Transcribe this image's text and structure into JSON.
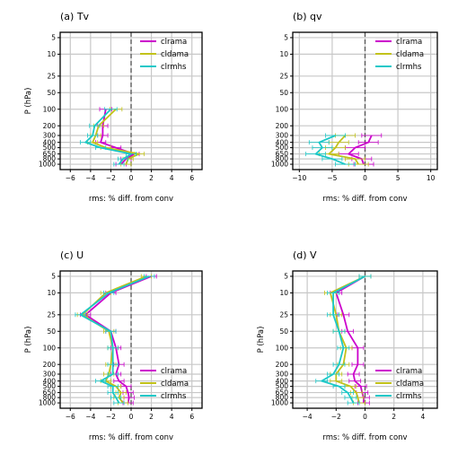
{
  "figure": {
    "pressure_levels": [
      1000,
      800,
      650,
      500,
      400,
      300,
      200,
      100,
      50,
      25,
      10,
      5
    ],
    "series_colors": {
      "clrama": "#cc00cc",
      "cldama": "#c2c21a",
      "clrmhs": "#1ac8c8"
    },
    "grid": true,
    "zero_line": "dashed"
  },
  "chart_data": [
    {
      "type": "line",
      "title": "(a) Tv",
      "xlabel": "rms: % diff. from conv",
      "ylabel": "P (hPa)",
      "xticks": [
        "−6",
        "−4",
        "−2",
        "0",
        "2",
        "4",
        "6"
      ],
      "xlim": [
        -7,
        7
      ],
      "yticks": [
        "5",
        "10",
        "25",
        "50",
        "100",
        "200",
        "300",
        "400",
        "500",
        "650",
        "800",
        "1000"
      ],
      "legend": "top-right",
      "series": [
        {
          "name": "clrama",
          "color": "#cc00cc",
          "pressure": [
            100,
            200,
            300,
            400,
            500,
            650,
            800,
            1000
          ],
          "values": [
            -2.5,
            -2.8,
            -2.8,
            -3.0,
            -1.5,
            0.3,
            -0.5,
            -1.0
          ],
          "err": [
            0.6,
            0.5,
            0.5,
            0.5,
            0.5,
            0.5,
            0.5,
            0.5
          ]
        },
        {
          "name": "cldama",
          "color": "#c2c21a",
          "pressure": [
            100,
            200,
            300,
            400,
            500,
            650,
            800,
            1000
          ],
          "values": [
            -1.5,
            -3.2,
            -3.5,
            -3.8,
            -2.5,
            0.8,
            -0.3,
            -0.5
          ],
          "err": [
            0.6,
            0.5,
            0.5,
            0.5,
            0.5,
            0.5,
            0.5,
            0.5
          ]
        },
        {
          "name": "clrmhs",
          "color": "#1ac8c8",
          "pressure": [
            100,
            200,
            300,
            400,
            500,
            650,
            800,
            1000
          ],
          "values": [
            -2.0,
            -3.6,
            -3.8,
            -4.5,
            -3.0,
            0.0,
            -0.8,
            -1.2
          ],
          "err": [
            0.6,
            0.5,
            0.5,
            0.5,
            0.5,
            0.5,
            0.5,
            0.5
          ]
        }
      ]
    },
    {
      "type": "line",
      "title": "(b) qv",
      "xlabel": "rms: % diff. from conv",
      "ylabel": "",
      "xticks": [
        "−10",
        "−5",
        "0",
        "5",
        "10"
      ],
      "xlim": [
        -11,
        11
      ],
      "yticks": [
        "5",
        "10",
        "25",
        "50",
        "100",
        "200",
        "300",
        "400",
        "500",
        "650",
        "800",
        "1000"
      ],
      "legend": "top-right",
      "series": [
        {
          "name": "clrama",
          "color": "#cc00cc",
          "pressure": [
            300,
            400,
            500,
            650,
            800,
            1000
          ],
          "values": [
            1.0,
            0.5,
            -1.5,
            -2.5,
            -0.5,
            -0.2
          ],
          "err": [
            1.5,
            1.5,
            1.5,
            1.5,
            1.5,
            1.5
          ]
        },
        {
          "name": "cldama",
          "color": "#c2c21a",
          "pressure": [
            300,
            400,
            500,
            650,
            800,
            1000
          ],
          "values": [
            -3.0,
            -4.0,
            -4.5,
            -5.5,
            -1.5,
            -1.0
          ],
          "err": [
            1.5,
            1.5,
            1.5,
            1.5,
            1.5,
            1.5
          ]
        },
        {
          "name": "clrmhs",
          "color": "#1ac8c8",
          "pressure": [
            300,
            400,
            500,
            650,
            800,
            1000
          ],
          "values": [
            -4.5,
            -7.0,
            -6.5,
            -7.5,
            -5.0,
            -3.0
          ],
          "err": [
            1.5,
            1.5,
            1.5,
            1.5,
            1.5,
            1.5
          ]
        }
      ]
    },
    {
      "type": "line",
      "title": "(c) U",
      "xlabel": "rms: % diff. from conv",
      "ylabel": "P (hPa)",
      "xticks": [
        "−6",
        "−4",
        "−2",
        "0",
        "2",
        "4",
        "6"
      ],
      "xlim": [
        -7,
        7
      ],
      "yticks": [
        "5",
        "10",
        "25",
        "50",
        "100",
        "200",
        "300",
        "400",
        "500",
        "650",
        "800",
        "1000"
      ],
      "legend": "bottom-right",
      "series": [
        {
          "name": "clrama",
          "color": "#cc00cc",
          "pressure": [
            5,
            10,
            25,
            50,
            100,
            200,
            300,
            400,
            500,
            650,
            800,
            1000
          ],
          "values": [
            2.0,
            -2.0,
            -4.5,
            -2.0,
            -1.5,
            -1.2,
            -1.5,
            -1.2,
            -0.5,
            -0.3,
            -0.2,
            -0.3
          ],
          "err": [
            0.5,
            0.5,
            0.5,
            0.5,
            0.5,
            0.5,
            0.5,
            0.5,
            0.5,
            0.5,
            0.5,
            0.5
          ]
        },
        {
          "name": "cldama",
          "color": "#c2c21a",
          "pressure": [
            5,
            10,
            25,
            50,
            100,
            200,
            300,
            400,
            500,
            650,
            800,
            1000
          ],
          "values": [
            1.5,
            -2.5,
            -4.8,
            -2.2,
            -1.8,
            -2.0,
            -2.2,
            -2.5,
            -1.5,
            -1.0,
            -1.2,
            -0.8
          ],
          "err": [
            0.5,
            0.5,
            0.5,
            0.5,
            0.5,
            0.5,
            0.5,
            0.5,
            0.5,
            0.5,
            0.5,
            0.5
          ]
        },
        {
          "name": "clrmhs",
          "color": "#1ac8c8",
          "pressure": [
            5,
            10,
            25,
            50,
            100,
            200,
            300,
            400,
            500,
            650,
            800,
            1000
          ],
          "values": [
            1.8,
            -2.2,
            -5.0,
            -2.0,
            -1.8,
            -1.8,
            -1.8,
            -3.0,
            -1.8,
            -1.8,
            -1.5,
            -1.2
          ],
          "err": [
            0.5,
            0.5,
            0.5,
            0.5,
            0.5,
            0.5,
            0.5,
            0.5,
            0.5,
            0.5,
            0.5,
            0.5
          ]
        }
      ]
    },
    {
      "type": "line",
      "title": "(d) V",
      "xlabel": "rms: % diff. from conv",
      "ylabel": "P (hPa)",
      "xticks": [
        "−4",
        "−2",
        "0",
        "2",
        "4"
      ],
      "xlim": [
        -5,
        5
      ],
      "yticks": [
        "5",
        "10",
        "25",
        "50",
        "100",
        "200",
        "300",
        "400",
        "500",
        "650",
        "800",
        "1000"
      ],
      "legend": "bottom-right",
      "series": [
        {
          "name": "clrama",
          "color": "#cc00cc",
          "pressure": [
            5,
            10,
            25,
            50,
            100,
            200,
            300,
            400,
            500,
            650,
            800,
            1000
          ],
          "values": [
            0.0,
            -2.0,
            -1.5,
            -1.2,
            -0.5,
            -0.5,
            -0.8,
            -0.7,
            -0.3,
            -0.2,
            -0.1,
            -0.1
          ],
          "err": [
            0.4,
            0.4,
            0.4,
            0.4,
            0.4,
            0.4,
            0.4,
            0.4,
            0.4,
            0.4,
            0.4,
            0.4
          ]
        },
        {
          "name": "cldama",
          "color": "#c2c21a",
          "pressure": [
            5,
            10,
            25,
            50,
            100,
            200,
            300,
            400,
            500,
            650,
            800,
            1000
          ],
          "values": [
            0.0,
            -2.4,
            -2.0,
            -1.8,
            -1.3,
            -1.5,
            -2.0,
            -2.0,
            -1.0,
            -0.6,
            -0.5,
            -0.4
          ],
          "err": [
            0.4,
            0.4,
            0.4,
            0.4,
            0.4,
            0.4,
            0.4,
            0.4,
            0.4,
            0.4,
            0.4,
            0.4
          ]
        },
        {
          "name": "clrmhs",
          "color": "#1ac8c8",
          "pressure": [
            5,
            10,
            25,
            50,
            100,
            200,
            300,
            400,
            500,
            650,
            800,
            1000
          ],
          "values": [
            0.0,
            -2.2,
            -2.2,
            -1.8,
            -1.5,
            -1.8,
            -2.2,
            -3.0,
            -1.8,
            -1.2,
            -1.0,
            -0.8
          ],
          "err": [
            0.4,
            0.4,
            0.4,
            0.4,
            0.4,
            0.4,
            0.4,
            0.4,
            0.4,
            0.4,
            0.4,
            0.4
          ]
        }
      ]
    }
  ]
}
